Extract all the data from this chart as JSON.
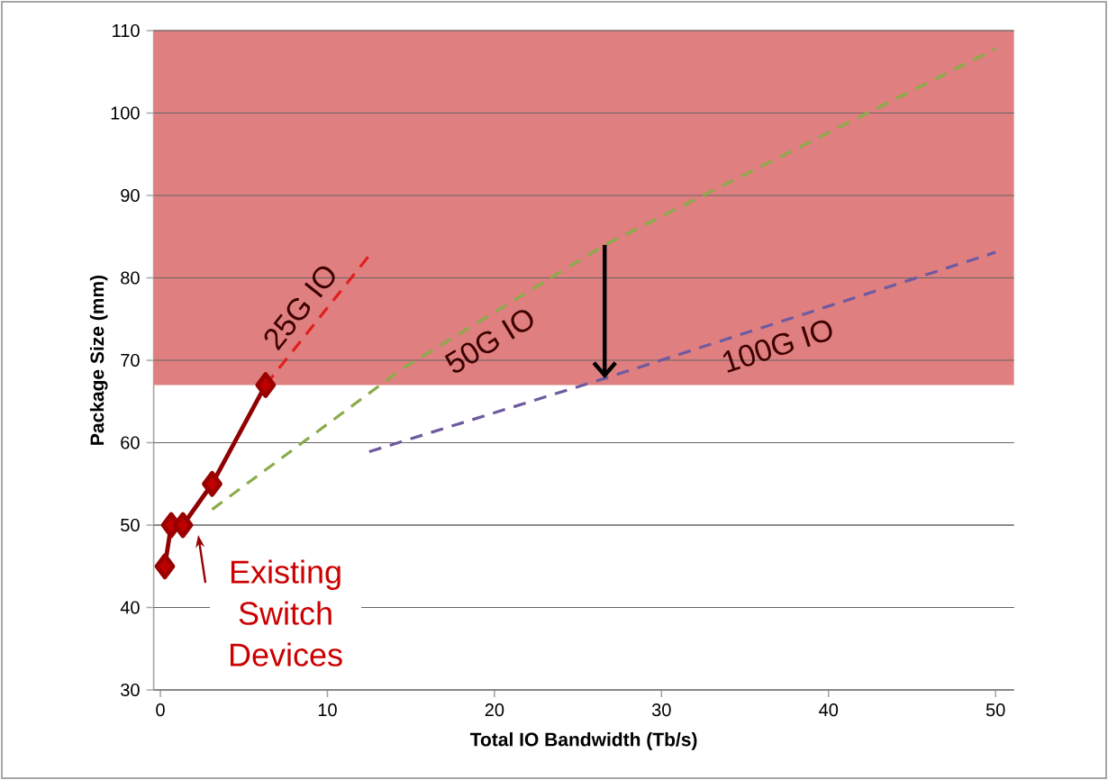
{
  "chart_data": {
    "type": "line",
    "xlabel": "Total IO Bandwidth (Tb/s)",
    "ylabel": "Package Size (mm)",
    "xlim": [
      -0.4,
      51.1
    ],
    "ylim": [
      30,
      110
    ],
    "xticks": [
      0,
      10,
      20,
      30,
      40,
      50
    ],
    "yticks": [
      30,
      40,
      50,
      60,
      70,
      80,
      90,
      100,
      110
    ],
    "grid": "y",
    "series": [
      {
        "color": "#c00000",
        "marker": "diamond",
        "line_style": "solid",
        "x": [
          0.27,
          0.65,
          1.35,
          3.1,
          6.3
        ],
        "values": [
          45,
          50,
          50,
          55,
          67
        ]
      },
      {
        "name": "25G IO",
        "color": "#e02020",
        "marker": "none",
        "line_style": "dashed",
        "x": [
          6.3,
          12.5
        ],
        "values": [
          67,
          82.7
        ]
      },
      {
        "name": "50G IO",
        "color": "#8aac4a",
        "marker": "none",
        "line_style": "dashed",
        "x": [
          3.1,
          14.5,
          26.6,
          50
        ],
        "values": [
          51.9,
          69,
          84,
          107.8
        ]
      },
      {
        "name": "100G IO",
        "color": "#6e5aa0",
        "marker": "none",
        "line_style": "dashed",
        "x": [
          12.5,
          26.6,
          50
        ],
        "values": [
          58.9,
          67.8,
          83.1
        ]
      }
    ],
    "bands": [
      {
        "axis": "y",
        "from": 67,
        "to": 110,
        "color": "#df7f7f"
      }
    ],
    "annotations": [
      {
        "text": "Existing Switch Devices",
        "x": 1.35,
        "y": 50
      }
    ]
  }
}
